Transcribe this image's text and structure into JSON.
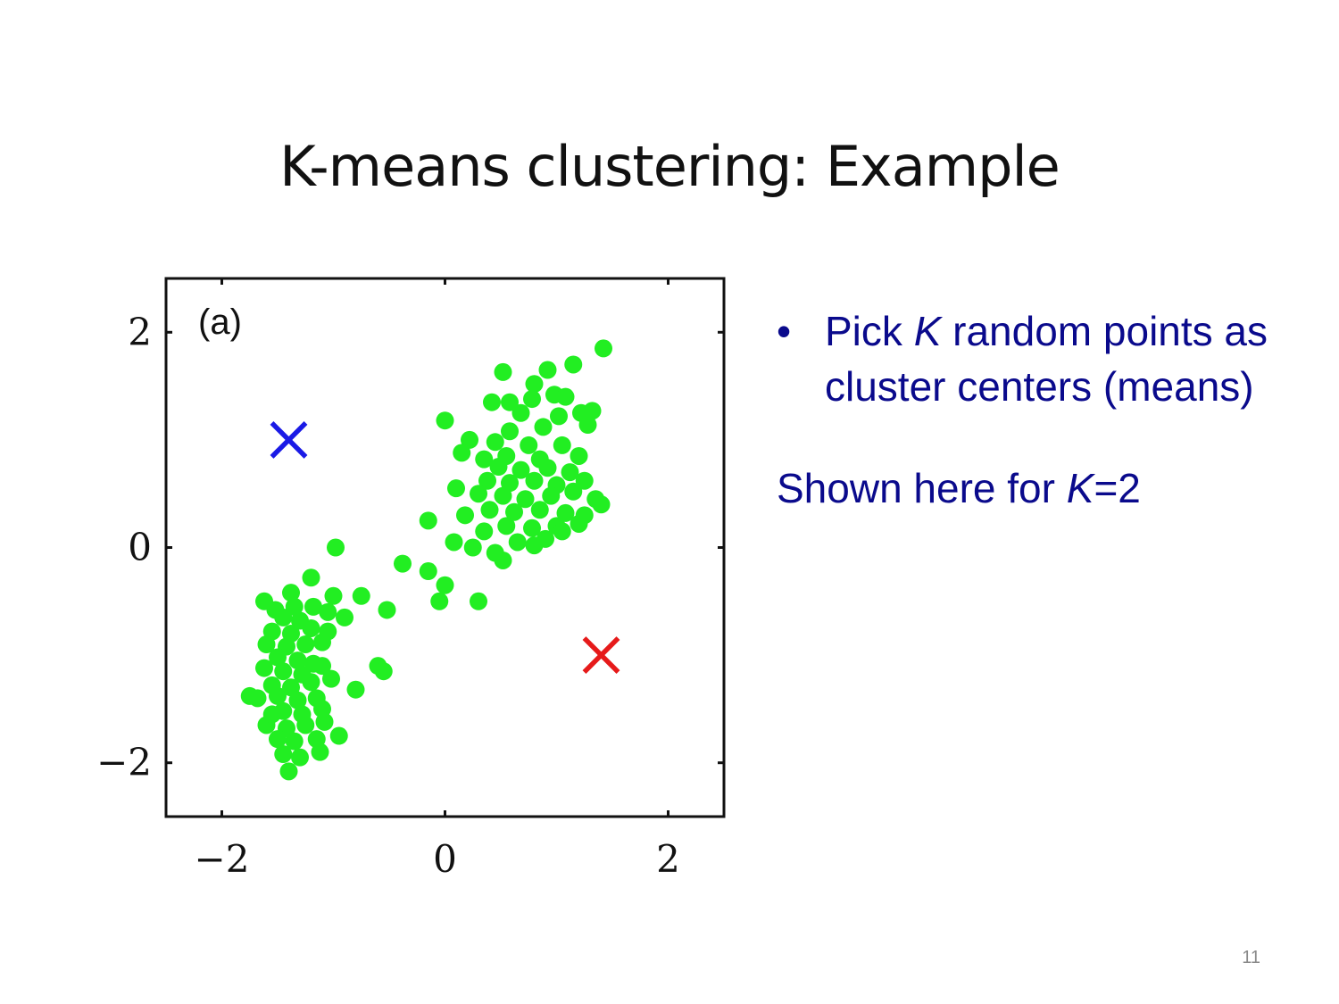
{
  "slide": {
    "title": "K-means clustering: Example",
    "bullet_marker": "•",
    "bullet_parts": [
      "Pick ",
      "K",
      " random points as cluster centers (means)"
    ],
    "note_parts": [
      "Shown here for ",
      "K",
      "=2"
    ],
    "page_number": "11"
  },
  "chart_data": {
    "type": "scatter",
    "panel_label": "(a)",
    "xlim": [
      -2.5,
      2.5
    ],
    "ylim": [
      -2.5,
      2.5
    ],
    "xticks": [
      -2,
      0,
      2
    ],
    "yticks": [
      -2,
      0,
      2
    ],
    "tick_labels_x": [
      "−2",
      "0",
      "2"
    ],
    "tick_labels_y": [
      "−2",
      "0",
      "2"
    ],
    "grid": false,
    "points_color": "#22ee22",
    "points": [
      [
        1.42,
        1.85
      ],
      [
        1.15,
        1.7
      ],
      [
        0.92,
        1.65
      ],
      [
        0.52,
        1.63
      ],
      [
        0.8,
        1.52
      ],
      [
        0.98,
        1.42
      ],
      [
        1.08,
        1.4
      ],
      [
        0.58,
        1.35
      ],
      [
        0.78,
        1.38
      ],
      [
        0.42,
        1.35
      ],
      [
        0.68,
        1.25
      ],
      [
        1.22,
        1.25
      ],
      [
        1.32,
        1.27
      ],
      [
        1.02,
        1.22
      ],
      [
        0.58,
        1.08
      ],
      [
        0.88,
        1.12
      ],
      [
        0.0,
        1.18
      ],
      [
        1.28,
        1.14
      ],
      [
        0.22,
        1.0
      ],
      [
        0.45,
        0.98
      ],
      [
        0.75,
        0.95
      ],
      [
        1.05,
        0.95
      ],
      [
        0.15,
        0.88
      ],
      [
        0.35,
        0.82
      ],
      [
        0.55,
        0.85
      ],
      [
        0.85,
        0.82
      ],
      [
        1.2,
        0.85
      ],
      [
        0.48,
        0.75
      ],
      [
        0.68,
        0.72
      ],
      [
        0.92,
        0.74
      ],
      [
        1.12,
        0.7
      ],
      [
        0.38,
        0.62
      ],
      [
        0.58,
        0.6
      ],
      [
        0.8,
        0.62
      ],
      [
        1.0,
        0.58
      ],
      [
        1.25,
        0.62
      ],
      [
        0.1,
        0.55
      ],
      [
        0.3,
        0.5
      ],
      [
        0.52,
        0.48
      ],
      [
        0.72,
        0.45
      ],
      [
        0.95,
        0.48
      ],
      [
        1.15,
        0.52
      ],
      [
        1.35,
        0.45
      ],
      [
        0.4,
        0.35
      ],
      [
        0.62,
        0.33
      ],
      [
        0.85,
        0.35
      ],
      [
        1.08,
        0.32
      ],
      [
        0.18,
        0.3
      ],
      [
        0.55,
        0.2
      ],
      [
        0.78,
        0.18
      ],
      [
        1.0,
        0.2
      ],
      [
        1.2,
        0.22
      ],
      [
        -0.15,
        0.25
      ],
      [
        0.35,
        0.15
      ],
      [
        0.65,
        0.05
      ],
      [
        0.9,
        0.08
      ],
      [
        1.05,
        0.15
      ],
      [
        0.08,
        0.05
      ],
      [
        0.25,
        0.0
      ],
      [
        0.45,
        -0.05
      ],
      [
        0.52,
        -0.12
      ],
      [
        0.8,
        0.02
      ],
      [
        1.4,
        0.4
      ],
      [
        1.25,
        0.3
      ],
      [
        -0.38,
        -0.15
      ],
      [
        -0.15,
        -0.22
      ],
      [
        0.0,
        -0.35
      ],
      [
        -0.05,
        -0.5
      ],
      [
        0.3,
        -0.5
      ],
      [
        -0.98,
        0.0
      ],
      [
        -1.2,
        -0.28
      ],
      [
        -1.38,
        -0.42
      ],
      [
        -1.0,
        -0.45
      ],
      [
        -1.62,
        -0.5
      ],
      [
        -0.75,
        -0.45
      ],
      [
        -1.52,
        -0.58
      ],
      [
        -1.18,
        -0.55
      ],
      [
        -1.05,
        -0.6
      ],
      [
        -0.52,
        -0.58
      ],
      [
        -1.45,
        -0.65
      ],
      [
        -1.3,
        -0.68
      ],
      [
        -0.9,
        -0.65
      ],
      [
        -1.55,
        -0.78
      ],
      [
        -1.38,
        -0.8
      ],
      [
        -1.2,
        -0.75
      ],
      [
        -1.05,
        -0.78
      ],
      [
        -1.6,
        -0.9
      ],
      [
        -1.42,
        -0.92
      ],
      [
        -1.25,
        -0.9
      ],
      [
        -1.1,
        -0.88
      ],
      [
        -1.5,
        -1.02
      ],
      [
        -1.32,
        -1.05
      ],
      [
        -1.18,
        -1.08
      ],
      [
        -1.62,
        -1.12
      ],
      [
        -1.45,
        -1.15
      ],
      [
        -1.28,
        -1.18
      ],
      [
        -0.6,
        -1.1
      ],
      [
        -0.55,
        -1.15
      ],
      [
        -1.55,
        -1.28
      ],
      [
        -1.38,
        -1.3
      ],
      [
        -1.2,
        -1.25
      ],
      [
        -1.02,
        -1.22
      ],
      [
        -1.68,
        -1.4
      ],
      [
        -1.5,
        -1.38
      ],
      [
        -1.32,
        -1.42
      ],
      [
        -1.15,
        -1.4
      ],
      [
        -0.8,
        -1.32
      ],
      [
        -1.45,
        -1.52
      ],
      [
        -1.28,
        -1.55
      ],
      [
        -1.1,
        -1.5
      ],
      [
        -1.6,
        -1.65
      ],
      [
        -1.42,
        -1.68
      ],
      [
        -1.25,
        -1.65
      ],
      [
        -1.08,
        -1.62
      ],
      [
        -1.5,
        -1.78
      ],
      [
        -1.35,
        -1.8
      ],
      [
        -1.15,
        -1.78
      ],
      [
        -0.95,
        -1.75
      ],
      [
        -1.45,
        -1.92
      ],
      [
        -1.3,
        -1.95
      ],
      [
        -1.12,
        -1.9
      ],
      [
        -1.4,
        -2.08
      ],
      [
        -1.75,
        -1.38
      ],
      [
        -1.35,
        -0.55
      ],
      [
        -1.1,
        -1.1
      ],
      [
        -1.55,
        -1.55
      ]
    ],
    "centers": [
      {
        "x": -1.4,
        "y": 1.0,
        "color": "#1a1ae6"
      },
      {
        "x": 1.4,
        "y": -1.0,
        "color": "#e61a1a"
      }
    ]
  }
}
